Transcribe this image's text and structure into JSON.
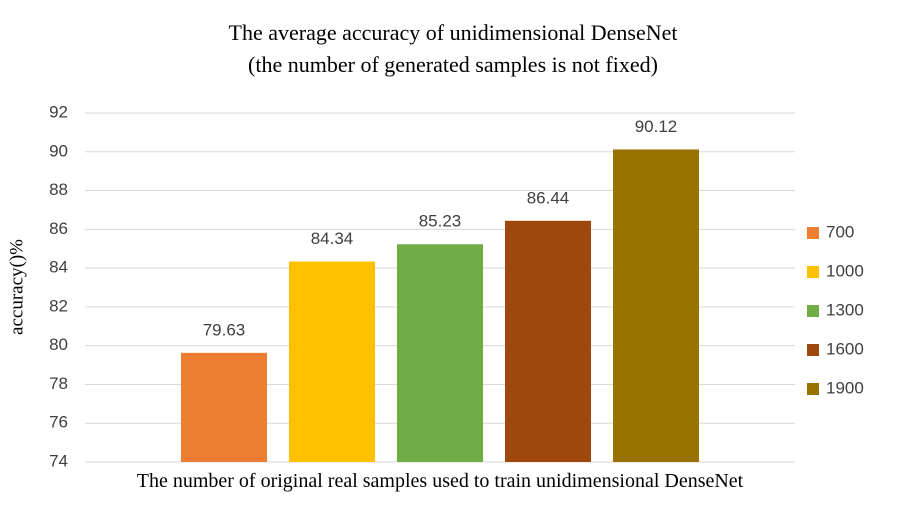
{
  "chart_data": {
    "type": "bar",
    "title": "The average accuracy of unidimensional DenseNet",
    "subtitle": "(the number of generated samples is not fixed)",
    "xlabel": "The number of original real samples used to train unidimensional DenseNet",
    "ylabel": "accuracy()%",
    "categories": [
      null
    ],
    "series": [
      {
        "name": "700",
        "color": "#ed7d31",
        "values": [
          79.63
        ]
      },
      {
        "name": "1000",
        "color": "#ffc000",
        "values": [
          84.34
        ]
      },
      {
        "name": "1300",
        "color": "#70ad47",
        "values": [
          85.23
        ]
      },
      {
        "name": "1600",
        "color": "#9e480e",
        "values": [
          86.44
        ]
      },
      {
        "name": "1900",
        "color": "#997300",
        "values": [
          90.12
        ]
      }
    ],
    "ylim": [
      74,
      92
    ],
    "yticks": [
      74,
      76,
      78,
      80,
      82,
      84,
      86,
      88,
      90,
      92
    ],
    "grid": true,
    "legend": "right"
  }
}
